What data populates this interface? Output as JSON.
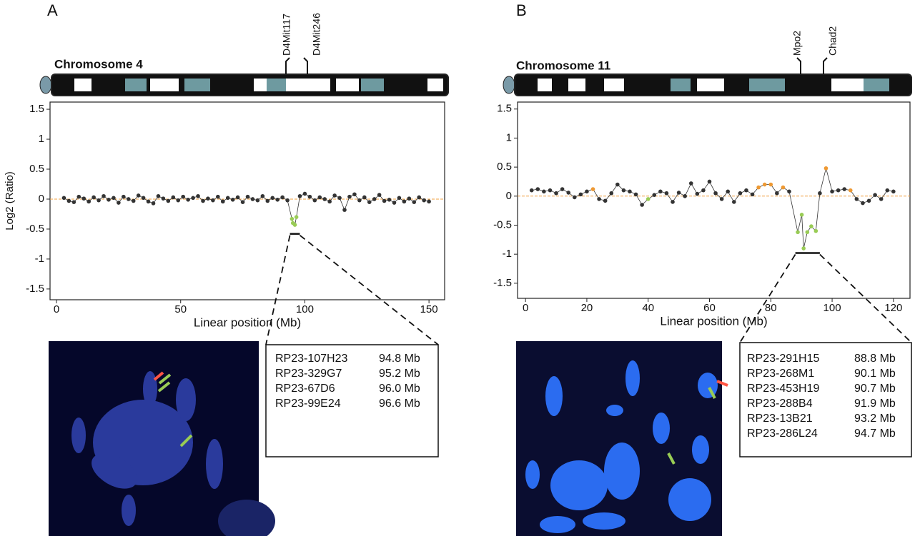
{
  "panels": [
    {
      "letter": "A",
      "chromosome": "Chromosome 4",
      "markers": [
        "D4Mit117",
        "D4Mit246"
      ],
      "table": [
        [
          "RP23-107H23",
          "94.8 Mb"
        ],
        [
          "RP23-329G7",
          "95.2 Mb"
        ],
        [
          "RP23-67D6",
          "96.0 Mb"
        ],
        [
          "RP23-99E24",
          "96.6 Mb"
        ]
      ]
    },
    {
      "letter": "B",
      "chromosome": "Chromosome 11",
      "markers": [
        "Mpo2",
        "Chad2"
      ],
      "table": [
        [
          "RP23-291H15",
          "88.8 Mb"
        ],
        [
          "RP23-268M1",
          "90.1 Mb"
        ],
        [
          "RP23-453H19",
          "90.7 Mb"
        ],
        [
          "RP23-288B4",
          "91.9 Mb"
        ],
        [
          "RP23-13B21",
          "93.2 Mb"
        ],
        [
          "RP23-286L24",
          "94.7 Mb"
        ]
      ]
    }
  ],
  "chart_data": [
    {
      "type": "scatter",
      "x_label": "Linear position (Mb)",
      "y_label": "Log2 (Ratio)",
      "xlim": [
        -2.6,
        156.3
      ],
      "ylim": [
        -1.68,
        1.62
      ],
      "xticks": [
        0,
        50,
        100,
        150
      ],
      "yticks": [
        1.5,
        1,
        0.5,
        0,
        -0.5,
        -1,
        -1.5
      ],
      "reference_line": 0,
      "reference_color": "#f0a040",
      "line_color": "#333",
      "x": [
        3,
        5,
        7,
        9,
        11,
        13,
        15,
        17,
        19,
        21,
        23,
        25,
        27,
        29,
        31,
        33,
        35,
        37,
        39,
        41,
        43,
        45,
        47,
        49,
        51,
        53,
        55,
        57,
        59,
        61,
        63,
        65,
        67,
        69,
        71,
        73,
        75,
        77,
        79,
        81,
        83,
        85,
        87,
        89,
        91,
        93,
        94.8,
        95.2,
        96.0,
        96.6,
        98,
        100,
        102,
        104,
        106,
        108,
        110,
        112,
        114,
        116,
        118,
        120,
        122,
        124,
        126,
        128,
        130,
        132,
        134,
        136,
        138,
        140,
        142,
        144,
        146,
        148,
        150
      ],
      "values": [
        0.02,
        -0.03,
        -0.05,
        0.04,
        0.01,
        -0.04,
        0.03,
        -0.02,
        0.05,
        -0.01,
        0.02,
        -0.06,
        0.04,
        0.0,
        -0.03,
        0.06,
        0.02,
        -0.04,
        -0.07,
        0.05,
        0.01,
        -0.03,
        0.03,
        -0.02,
        0.04,
        -0.01,
        0.02,
        0.05,
        -0.03,
        0.01,
        -0.02,
        0.04,
        -0.04,
        0.02,
        -0.01,
        0.03,
        -0.05,
        0.04,
        0.0,
        -0.02,
        0.05,
        -0.03,
        0.02,
        -0.01,
        0.03,
        -0.02,
        -0.33,
        -0.4,
        -0.43,
        -0.3,
        0.05,
        0.09,
        0.04,
        -0.02,
        0.03,
        0.0,
        -0.04,
        0.06,
        0.02,
        -0.18,
        0.04,
        0.08,
        -0.02,
        0.03,
        -0.05,
        0.0,
        0.07,
        -0.03,
        -0.01,
        -0.06,
        0.02,
        -0.04,
        0.01,
        -0.05,
        0.03,
        -0.02,
        -0.04
      ],
      "point_colors": [
        "#333",
        "#333",
        "#333",
        "#333",
        "#333",
        "#333",
        "#333",
        "#333",
        "#333",
        "#333",
        "#333",
        "#333",
        "#333",
        "#333",
        "#333",
        "#333",
        "#333",
        "#333",
        "#333",
        "#333",
        "#333",
        "#333",
        "#333",
        "#333",
        "#333",
        "#333",
        "#333",
        "#333",
        "#333",
        "#333",
        "#333",
        "#333",
        "#333",
        "#333",
        "#333",
        "#333",
        "#333",
        "#333",
        "#333",
        "#333",
        "#333",
        "#333",
        "#333",
        "#333",
        "#333",
        "#333",
        "#9c5",
        "#9c5",
        "#9c5",
        "#9c5",
        "#333",
        "#333",
        "#333",
        "#333",
        "#333",
        "#333",
        "#333",
        "#333",
        "#333",
        "#333",
        "#333",
        "#333",
        "#333",
        "#333",
        "#333",
        "#333",
        "#333",
        "#333",
        "#333",
        "#333",
        "#333",
        "#333",
        "#333",
        "#333",
        "#333",
        "#333",
        "#333"
      ],
      "bracket": {
        "x": [
          94,
          98
        ],
        "y": -0.58
      }
    },
    {
      "type": "scatter",
      "x_label": "Linear position (Mb)",
      "xlim": [
        -2.6,
        125.4
      ],
      "ylim": [
        -1.76,
        1.62
      ],
      "xticks": [
        0,
        20,
        40,
        60,
        80,
        100,
        120
      ],
      "yticks": [
        1.5,
        1,
        0.5,
        0,
        -0.5,
        -1,
        -1.5
      ],
      "reference_line": 0,
      "reference_color": "#f0a040",
      "line_color": "#333",
      "x": [
        2,
        4,
        6,
        8,
        10,
        12,
        14,
        16,
        18,
        20,
        22,
        24,
        26,
        28,
        30,
        32,
        34,
        36,
        38,
        40,
        42,
        44,
        46,
        48,
        50,
        52,
        54,
        56,
        58,
        60,
        62,
        64,
        66,
        68,
        70,
        72,
        74,
        76,
        78,
        80,
        82,
        84,
        86,
        88.8,
        90.1,
        90.7,
        91.9,
        93.2,
        94.7,
        96,
        98,
        100,
        102,
        104,
        106,
        108,
        110,
        112,
        114,
        116,
        118,
        120
      ],
      "values": [
        0.1,
        0.12,
        0.08,
        0.1,
        0.05,
        0.12,
        0.06,
        -0.02,
        0.03,
        0.08,
        0.12,
        -0.05,
        -0.08,
        0.05,
        0.2,
        0.1,
        0.08,
        0.03,
        -0.15,
        -0.05,
        0.02,
        0.08,
        0.05,
        -0.1,
        0.06,
        0.0,
        0.22,
        0.04,
        0.1,
        0.25,
        0.05,
        -0.05,
        0.08,
        -0.1,
        0.05,
        0.1,
        0.03,
        0.15,
        0.2,
        0.2,
        0.05,
        0.15,
        0.08,
        -0.62,
        -0.32,
        -0.9,
        -0.62,
        -0.52,
        -0.6,
        0.05,
        0.48,
        0.08,
        0.1,
        0.12,
        0.1,
        -0.05,
        -0.12,
        -0.08,
        0.02,
        -0.05,
        0.1,
        0.08
      ],
      "point_colors": [
        "#333",
        "#333",
        "#333",
        "#333",
        "#333",
        "#333",
        "#333",
        "#333",
        "#333",
        "#333",
        "#e93",
        "#333",
        "#333",
        "#333",
        "#333",
        "#333",
        "#333",
        "#333",
        "#333",
        "#9c5",
        "#333",
        "#333",
        "#333",
        "#333",
        "#333",
        "#333",
        "#333",
        "#333",
        "#333",
        "#333",
        "#333",
        "#333",
        "#333",
        "#333",
        "#333",
        "#333",
        "#333",
        "#e93",
        "#e93",
        "#e93",
        "#333",
        "#e93",
        "#333",
        "#9c5",
        "#9c5",
        "#9c5",
        "#9c5",
        "#9c5",
        "#9c5",
        "#333",
        "#e93",
        "#333",
        "#333",
        "#333",
        "#e93",
        "#333",
        "#333",
        "#333",
        "#333",
        "#333",
        "#333",
        "#333"
      ],
      "bracket": {
        "x": [
          88,
          96
        ],
        "y": -0.98
      }
    }
  ]
}
